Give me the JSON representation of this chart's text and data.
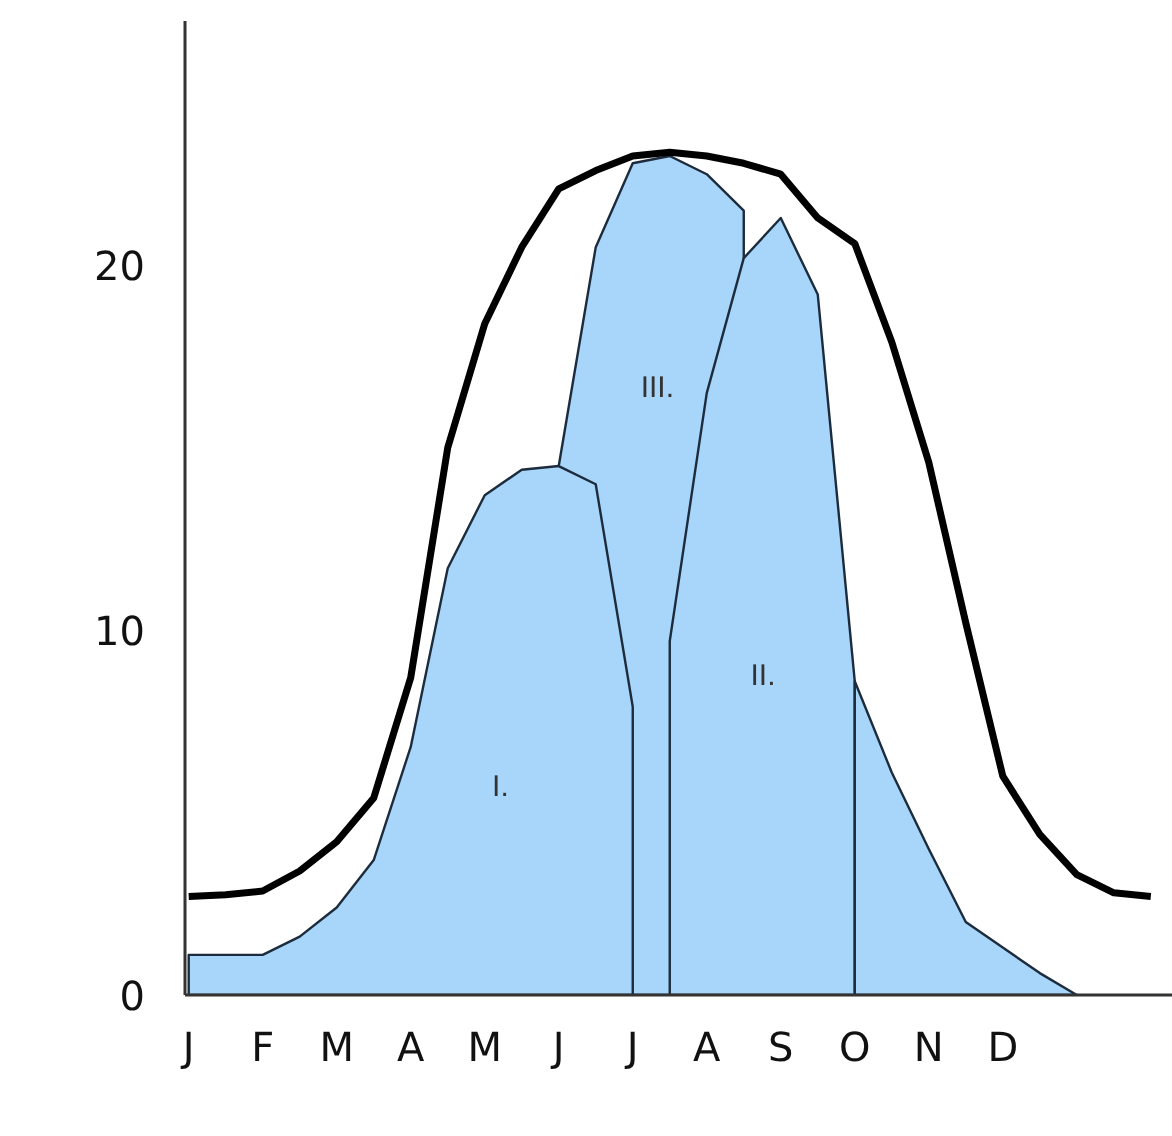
{
  "chart_data": {
    "type": "area",
    "ylim": [
      0,
      26.7
    ],
    "categories": [
      "J",
      null,
      "F",
      null,
      "M",
      null,
      "A",
      null,
      "M",
      null,
      "J",
      null,
      "J",
      null,
      "A",
      null,
      "S",
      null,
      "O",
      null,
      "N",
      null,
      "D",
      null,
      null,
      null,
      null
    ],
    "yticks": [
      0,
      10,
      20
    ],
    "grid": false,
    "marker": "none",
    "series": [
      {
        "name": "III.",
        "color": "#a8d5fa",
        "values": [
          null,
          null,
          null,
          null,
          null,
          null,
          null,
          null,
          null,
          null,
          14.5,
          20.5,
          22.8,
          23.0,
          22.5,
          21.5,
          null,
          null,
          null,
          null,
          null,
          null,
          null,
          null,
          null,
          null,
          null
        ]
      },
      {
        "name": "II.",
        "color": "#a8d5fa",
        "values": [
          null,
          null,
          null,
          null,
          null,
          null,
          null,
          null,
          null,
          null,
          null,
          null,
          null,
          9.7,
          16.5,
          20.2,
          21.3,
          19.2,
          8.6,
          null,
          null,
          null,
          null,
          null,
          null,
          null,
          null
        ]
      },
      {
        "color": "#a8d5fa",
        "values": [
          null,
          null,
          null,
          null,
          null,
          null,
          null,
          null,
          null,
          null,
          null,
          null,
          null,
          null,
          null,
          null,
          null,
          null,
          8.6,
          6.1,
          4.0,
          2.0,
          1.3,
          0.6,
          0,
          null,
          null
        ]
      },
      {
        "name": "I.",
        "color": "#a8d5fa",
        "values": [
          1.1,
          1.1,
          1.1,
          1.6,
          2.4,
          3.7,
          6.8,
          11.7,
          13.7,
          14.4,
          14.5,
          14.0,
          7.9,
          null,
          null,
          null,
          null,
          null,
          null,
          null,
          null,
          null,
          null,
          null,
          null,
          null,
          null
        ]
      },
      {
        "type": "line",
        "color": "#000000",
        "values": [
          2.7,
          2.75,
          2.85,
          3.4,
          4.2,
          5.4,
          8.7,
          15.0,
          18.4,
          20.5,
          22.1,
          22.6,
          23.0,
          23.1,
          23.0,
          22.8,
          22.5,
          21.3,
          20.6,
          17.9,
          14.6,
          10.2,
          6.0,
          4.4,
          3.3,
          2.8,
          2.7
        ]
      }
    ]
  }
}
